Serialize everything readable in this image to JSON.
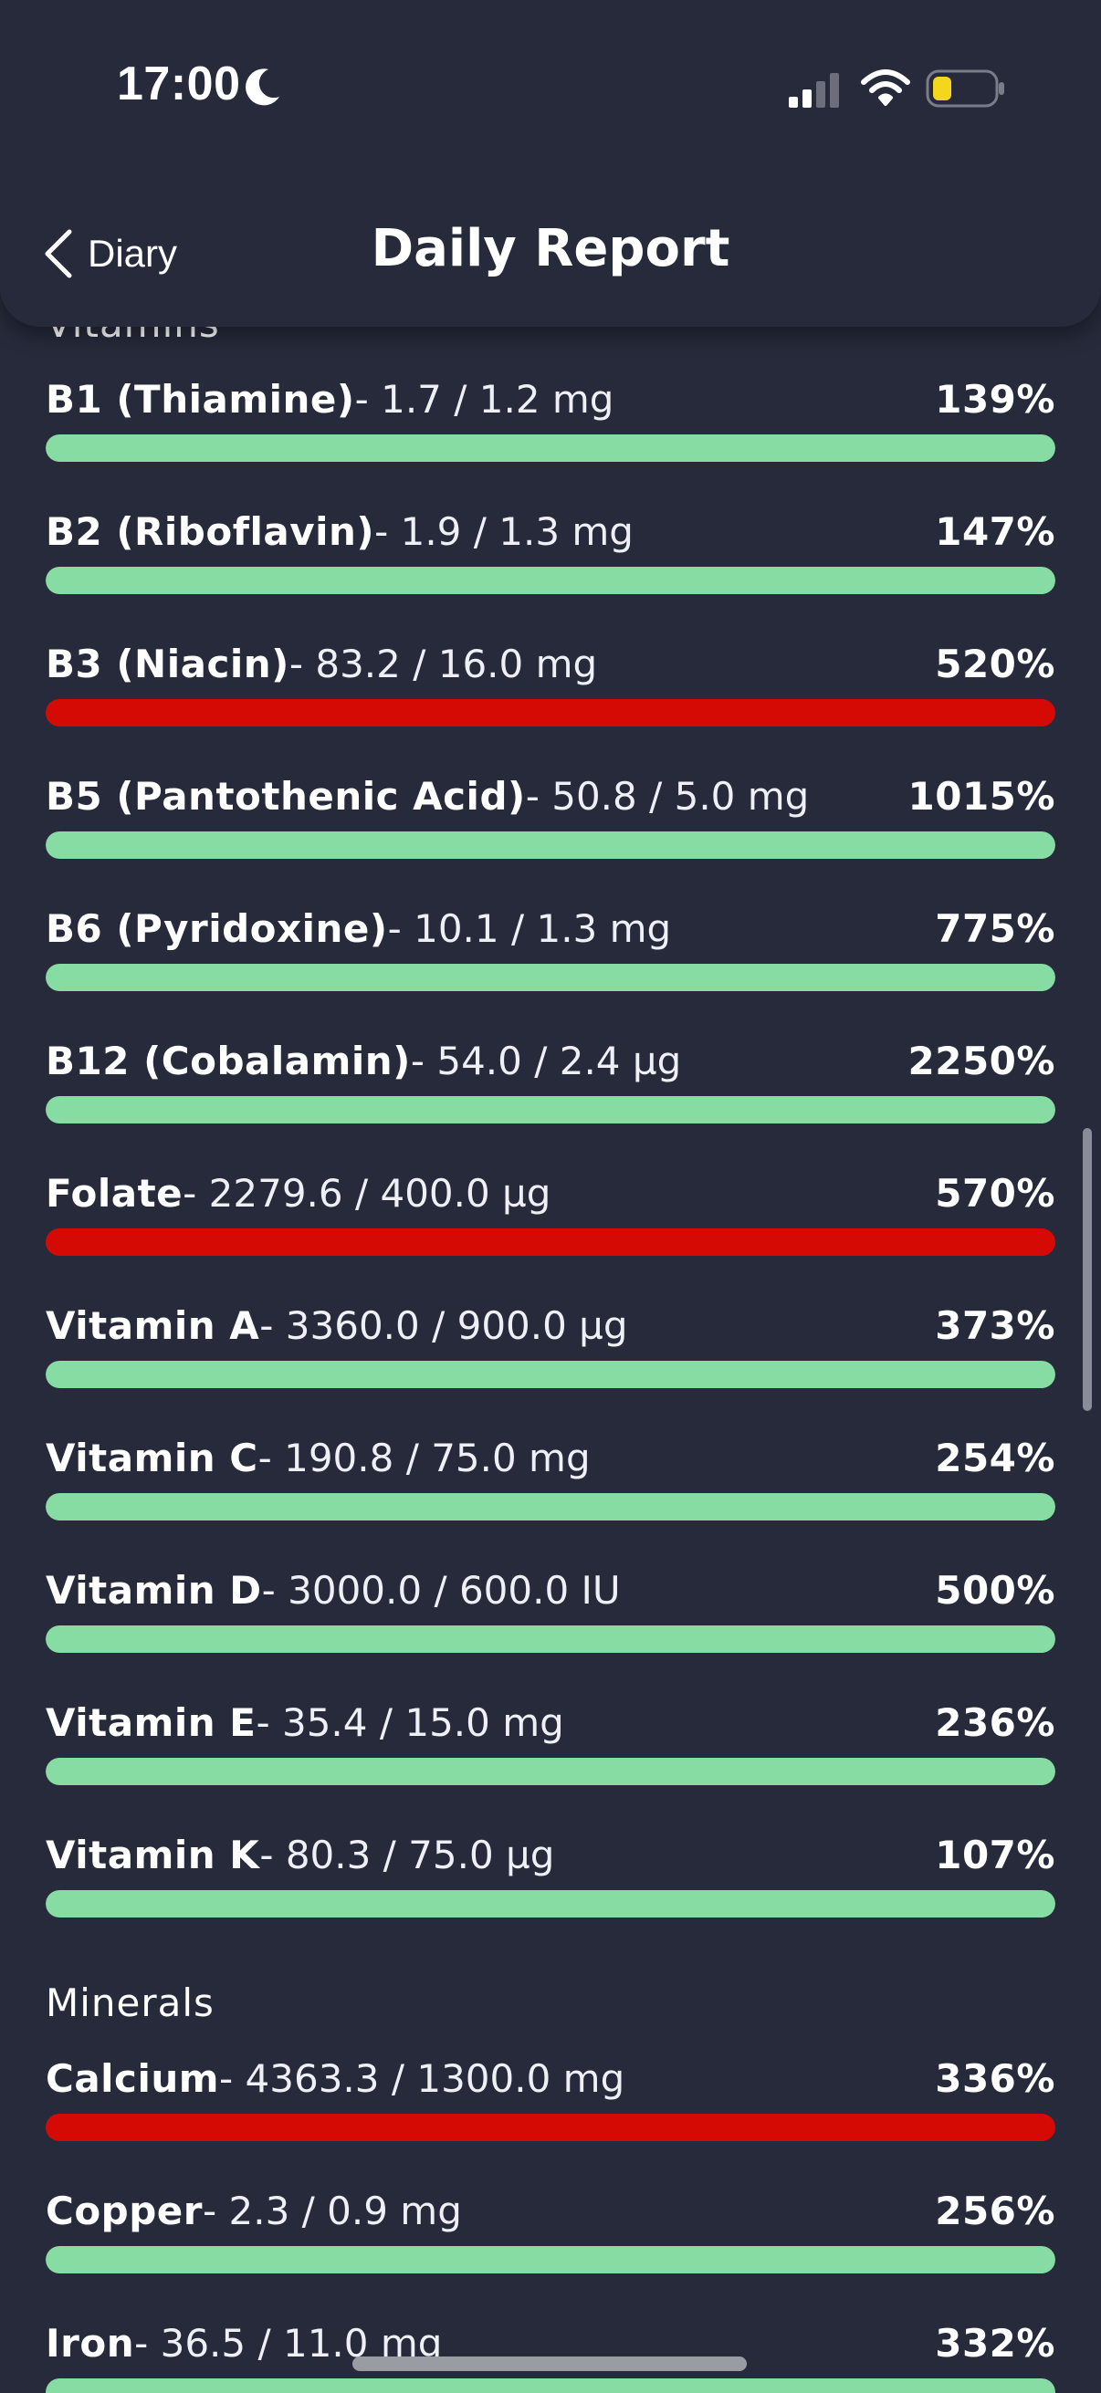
{
  "status_bar": {
    "time": "17:00"
  },
  "header": {
    "back_label": "Diary",
    "title": "Daily Report"
  },
  "colors": {
    "background": "#262a3a",
    "ok": "#87dca3",
    "warning": "#d60a05",
    "track": "#3a3f52"
  },
  "sections": [
    {
      "title": "Vitamins",
      "items": [
        {
          "name": "B1 (Thiamine)",
          "amount": "- 1.7 / 1.2 mg",
          "percent": "139%",
          "status": "ok",
          "fill_fraction": 1.0
        },
        {
          "name": "B2 (Riboflavin)",
          "amount": "- 1.9 / 1.3 mg",
          "percent": "147%",
          "status": "ok",
          "fill_fraction": 1.0
        },
        {
          "name": "B3 (Niacin)",
          "amount": "- 83.2 / 16.0 mg",
          "percent": "520%",
          "status": "warning",
          "fill_fraction": 1.0
        },
        {
          "name": "B5 (Pantothenic Acid)",
          "amount": "- 50.8 / 5.0 mg",
          "percent": "1015%",
          "status": "ok",
          "fill_fraction": 1.0
        },
        {
          "name": "B6 (Pyridoxine)",
          "amount": "- 10.1 / 1.3 mg",
          "percent": "775%",
          "status": "ok",
          "fill_fraction": 1.0
        },
        {
          "name": "B12 (Cobalamin)",
          "amount": "- 54.0 / 2.4 µg",
          "percent": "2250%",
          "status": "ok",
          "fill_fraction": 1.0
        },
        {
          "name": "Folate",
          "amount": "- 2279.6 / 400.0 µg",
          "percent": "570%",
          "status": "warning",
          "fill_fraction": 1.0
        },
        {
          "name": "Vitamin A",
          "amount": "- 3360.0 / 900.0 µg",
          "percent": "373%",
          "status": "ok",
          "fill_fraction": 1.0
        },
        {
          "name": "Vitamin C",
          "amount": "- 190.8 / 75.0 mg",
          "percent": "254%",
          "status": "ok",
          "fill_fraction": 1.0
        },
        {
          "name": "Vitamin D",
          "amount": "- 3000.0 / 600.0 IU",
          "percent": "500%",
          "status": "ok",
          "fill_fraction": 1.0
        },
        {
          "name": "Vitamin E",
          "amount": "- 35.4 / 15.0 mg",
          "percent": "236%",
          "status": "ok",
          "fill_fraction": 1.0
        },
        {
          "name": "Vitamin K",
          "amount": "- 80.3 / 75.0 µg",
          "percent": "107%",
          "status": "ok",
          "fill_fraction": 1.0
        }
      ]
    },
    {
      "title": "Minerals",
      "items": [
        {
          "name": "Calcium",
          "amount": "- 4363.3 / 1300.0 mg",
          "percent": "336%",
          "status": "warning",
          "fill_fraction": 1.0
        },
        {
          "name": "Copper",
          "amount": "- 2.3 / 0.9 mg",
          "percent": "256%",
          "status": "ok",
          "fill_fraction": 1.0
        },
        {
          "name": "Iron",
          "amount": "- 36.5 / 11.0 mg",
          "percent": "332%",
          "status": "ok",
          "fill_fraction": 1.0
        }
      ]
    }
  ]
}
